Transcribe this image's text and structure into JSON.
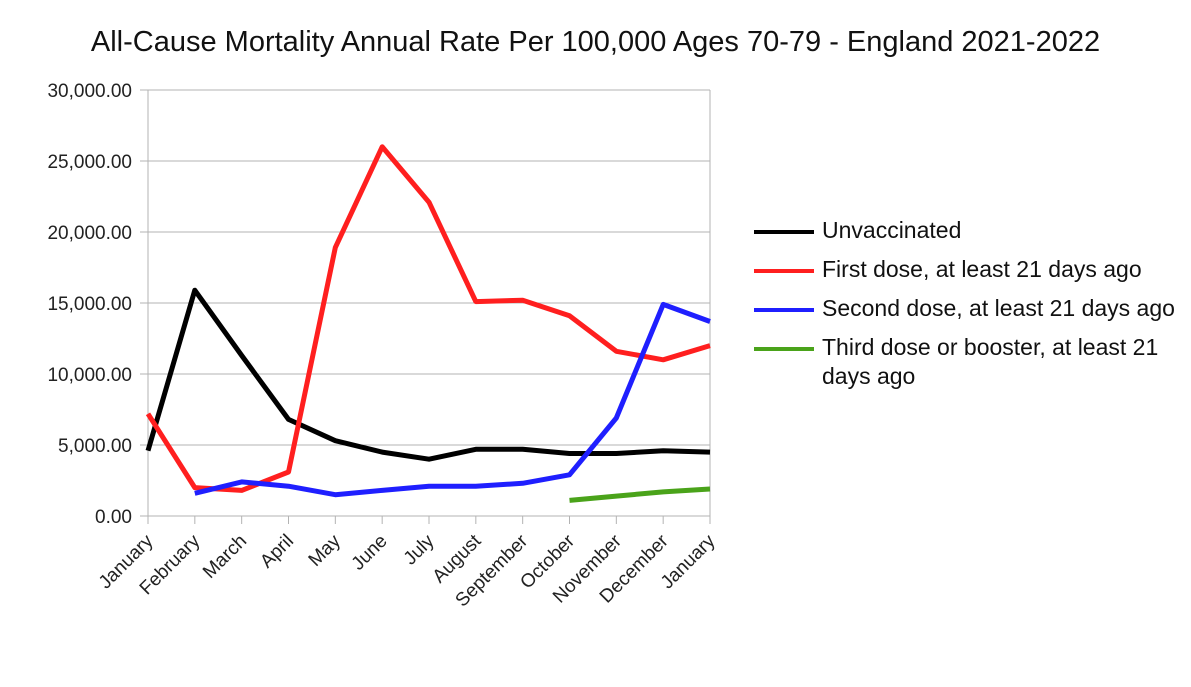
{
  "chart_data": {
    "type": "line",
    "title": "All-Cause Mortality Annual Rate Per 100,000 Ages 70-79 - England 2021-2022",
    "xlabel": "",
    "ylabel": "",
    "categories": [
      "January",
      "February",
      "March",
      "April",
      "May",
      "June",
      "July",
      "August",
      "September",
      "October",
      "November",
      "December",
      "January"
    ],
    "ylim": [
      0,
      30000
    ],
    "y_ticks": [
      "0.00",
      "5,000.00",
      "10,000.00",
      "15,000.00",
      "20,000.00",
      "25,000.00",
      "30,000.00"
    ],
    "grid": "horizontal",
    "legend": "right",
    "series": [
      {
        "name": "Unvaccinated",
        "color": "#000000",
        "values": [
          4600,
          15900,
          11300,
          6800,
          5300,
          4500,
          4000,
          4700,
          4700,
          4400,
          4400,
          4600,
          4500
        ]
      },
      {
        "name": "First dose, at least 21 days ago",
        "color": "#ff1f1f",
        "values": [
          7200,
          2000,
          1800,
          3100,
          18900,
          26000,
          22100,
          15100,
          15200,
          14100,
          11600,
          11000,
          12000
        ]
      },
      {
        "name": "Second dose, at least 21 days ago",
        "color": "#1f1fff",
        "values": [
          null,
          1600,
          2400,
          2100,
          1500,
          1800,
          2100,
          2100,
          2300,
          2900,
          6900,
          14900,
          13700
        ]
      },
      {
        "name": "Third dose or booster, at least 21 days ago",
        "color": "#4aa31a",
        "values": [
          null,
          null,
          null,
          null,
          null,
          null,
          null,
          null,
          null,
          1100,
          1400,
          1700,
          1900
        ]
      }
    ]
  }
}
